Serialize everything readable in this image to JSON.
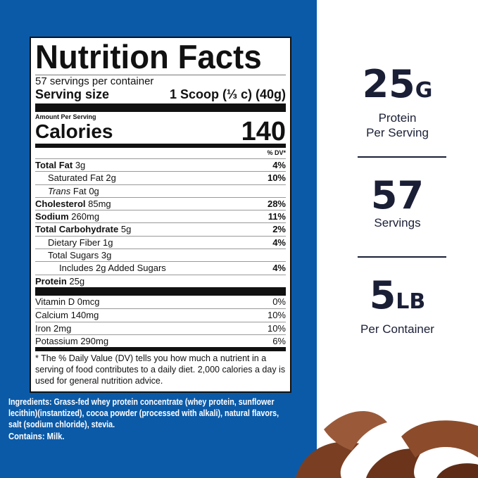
{
  "label": {
    "title": "Nutrition Facts",
    "servings": "57 servings per container",
    "serving_size_label": "Serving size",
    "serving_size_value": "1 Scoop (⅓ c) (40g)",
    "amount_per_serving": "Amount Per Serving",
    "calories_label": "Calories",
    "calories_value": "140",
    "dv_header": "% DV*",
    "nutrients": [
      {
        "name": "Total Fat",
        "amount": "3g",
        "dv": "4%"
      },
      {
        "name": "Saturated Fat",
        "amount": "2g",
        "dv": "10%"
      },
      {
        "name": "Trans",
        "name2": "Fat",
        "amount": "0g",
        "dv": ""
      },
      {
        "name": "Cholesterol",
        "amount": "85mg",
        "dv": "28%"
      },
      {
        "name": "Sodium",
        "amount": "260mg",
        "dv": "11%"
      },
      {
        "name": "Total Carbohydrate",
        "amount": "5g",
        "dv": "2%"
      },
      {
        "name": "Dietary Fiber",
        "amount": "1g",
        "dv": "4%"
      },
      {
        "name": "Total Sugars",
        "amount": "3g",
        "dv": ""
      },
      {
        "name": "Includes 2g Added Sugars",
        "amount": "",
        "dv": "4%"
      },
      {
        "name": "Protein",
        "amount": "25g",
        "dv": ""
      }
    ],
    "vitamins": [
      {
        "name": "Vitamin D",
        "amount": "0mcg",
        "dv": "0%"
      },
      {
        "name": "Calcium",
        "amount": "140mg",
        "dv": "10%"
      },
      {
        "name": "Iron",
        "amount": "2mg",
        "dv": "10%"
      },
      {
        "name": "Potassium",
        "amount": "290mg",
        "dv": "6%"
      }
    ],
    "footnote": "* The % Daily Value (DV) tells you how much a nutrient in a serving of food contributes to a daily diet. 2,000 calories a day is used for general nutrition advice."
  },
  "ingredients": "Ingredients: Grass-fed whey protein concentrate (whey protein, sunflower lecithin)(instantized), cocoa powder (processed with alkali), natural flavors, salt (sodium chloride), stevia.",
  "contains": "Contains: Milk.",
  "stats": [
    {
      "value": "25",
      "unit": "G",
      "label1": "Protein",
      "label2": "Per Serving"
    },
    {
      "value": "57",
      "unit": "",
      "label1": "Servings",
      "label2": ""
    },
    {
      "value": "5",
      "unit": "LB",
      "label1": "Per Container",
      "label2": ""
    }
  ],
  "colors": {
    "background_blue": "#0b5aa8",
    "stat_text": "#1a1f36"
  }
}
